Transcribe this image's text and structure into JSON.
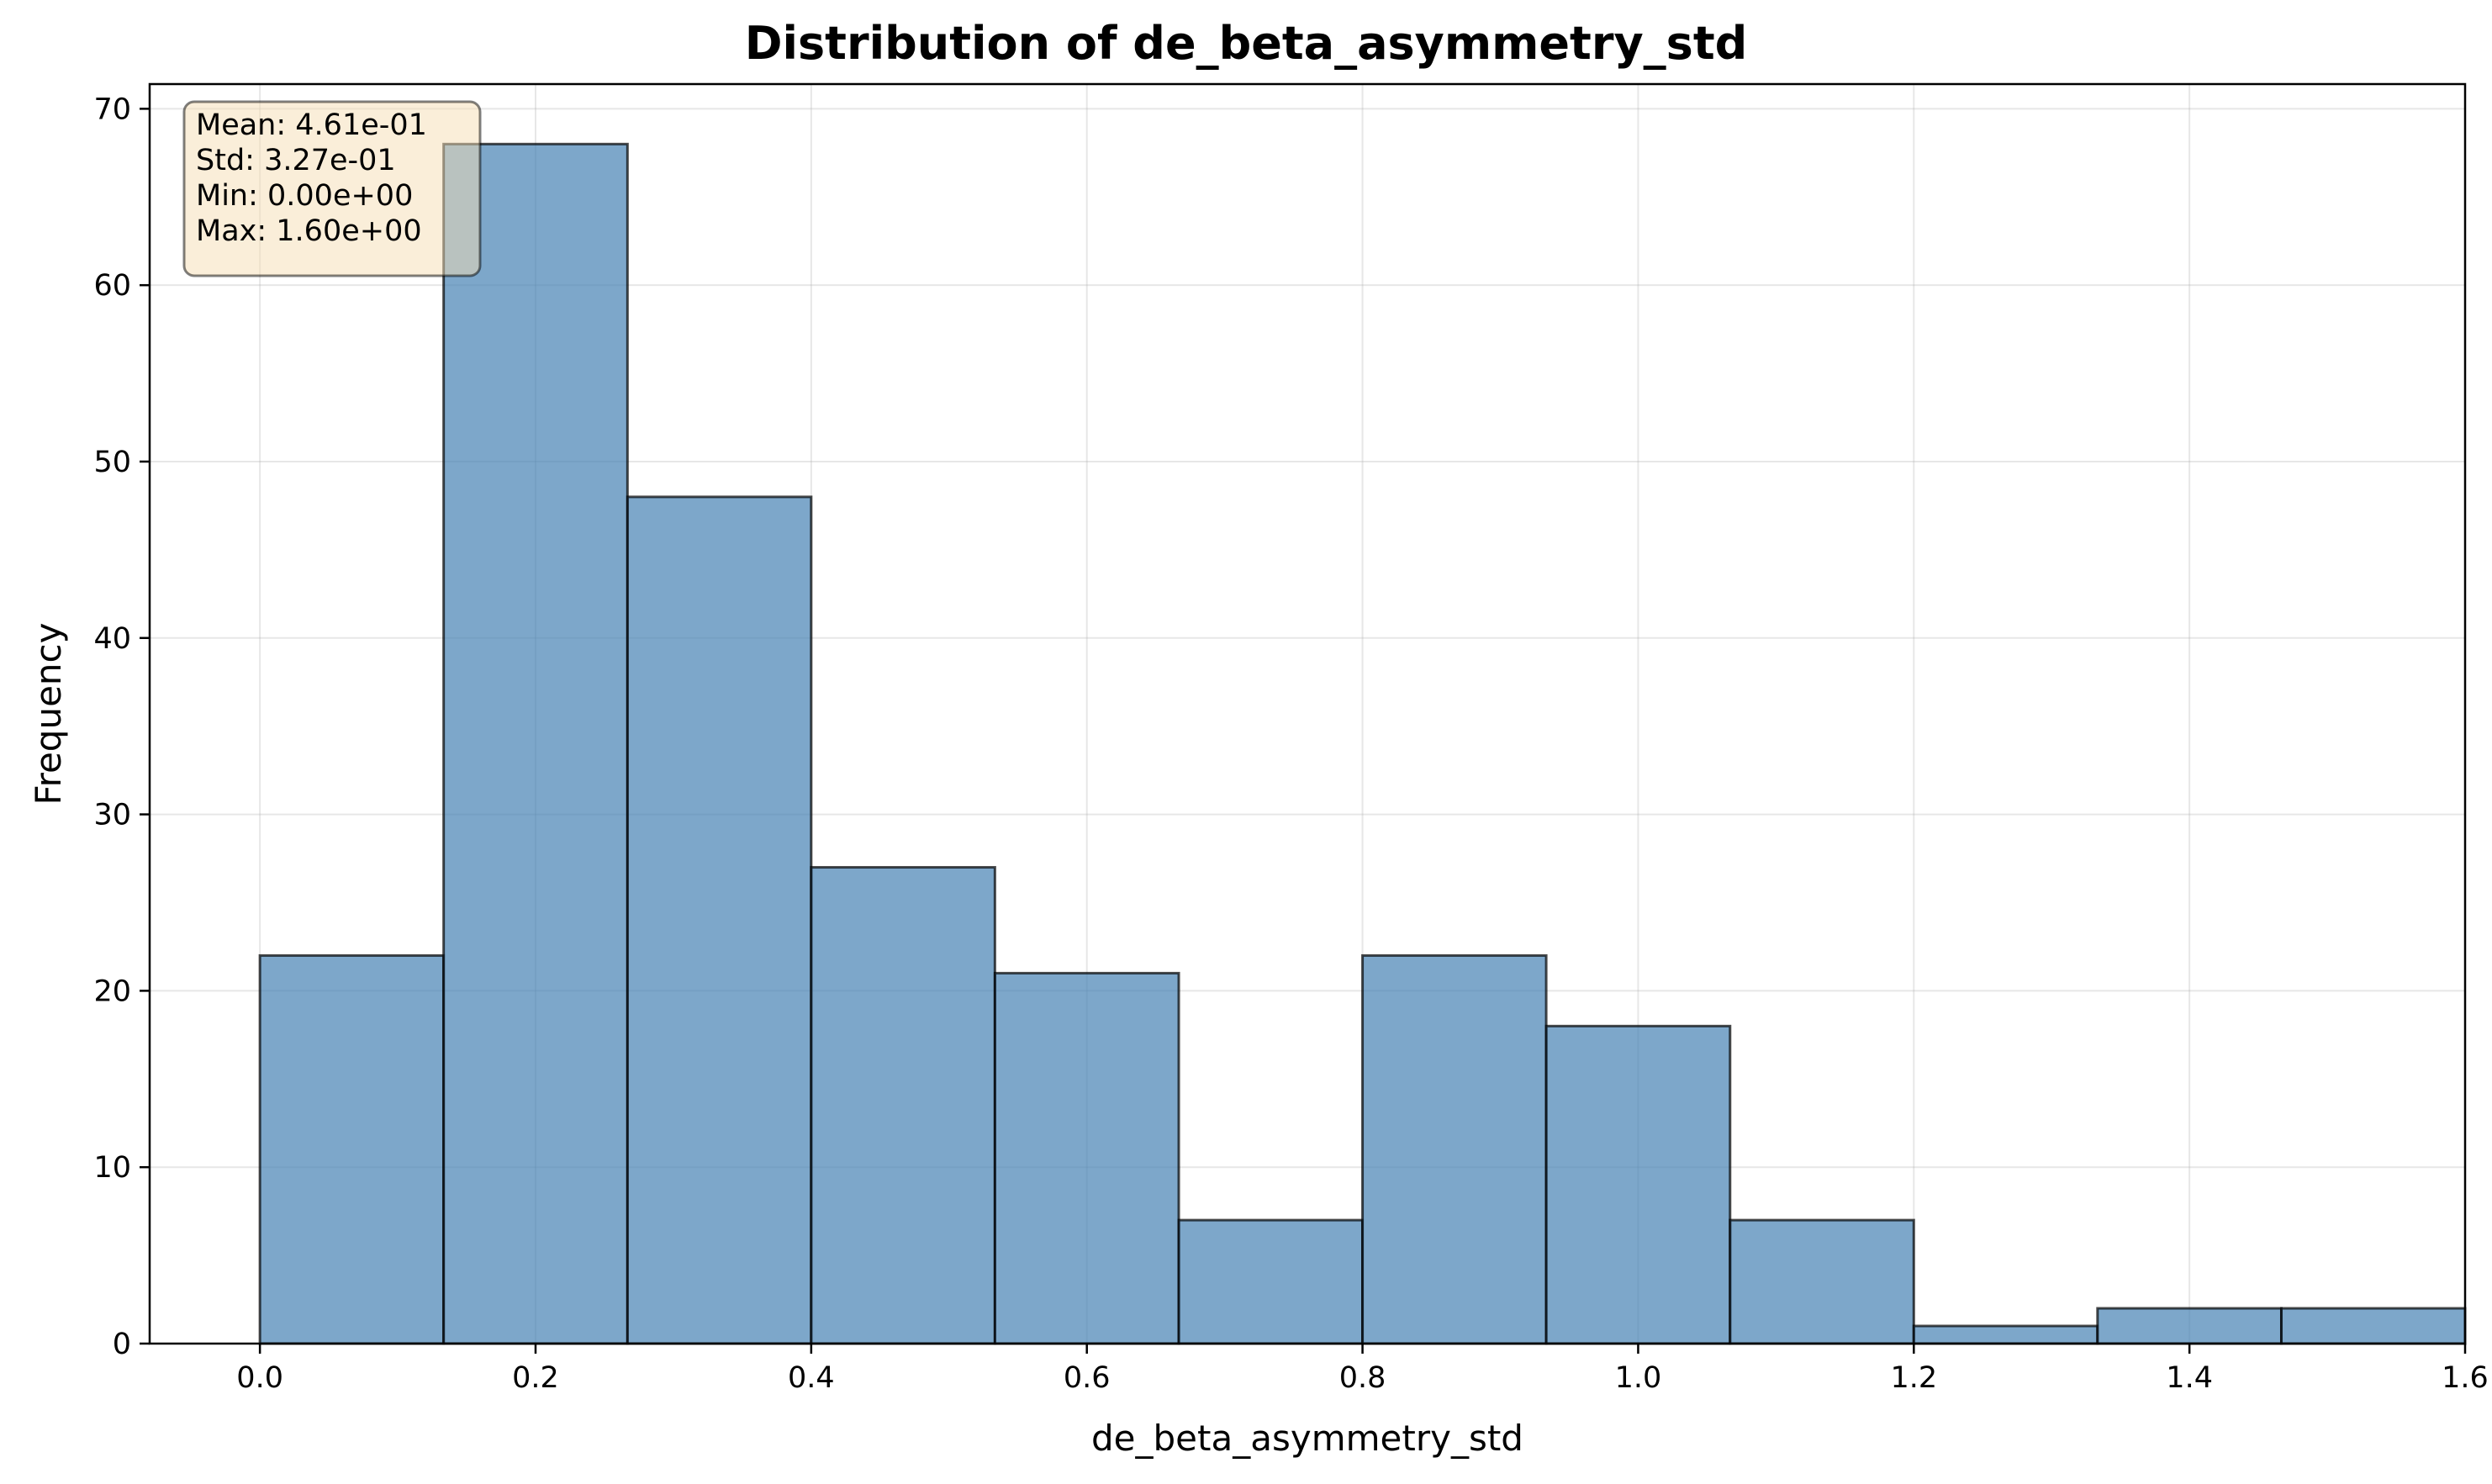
{
  "chart_data": {
    "type": "bar",
    "title": "Distribution of de_beta_asymmetry_std",
    "xlabel": "de_beta_asymmetry_std",
    "ylabel": "Frequency",
    "bin_edges": [
      0.0,
      0.1333,
      0.2667,
      0.4,
      0.5333,
      0.6667,
      0.8,
      0.9333,
      1.0667,
      1.2,
      1.3333,
      1.4667,
      1.6
    ],
    "values": [
      22,
      68,
      48,
      27,
      21,
      7,
      22,
      18,
      7,
      1,
      2,
      2
    ],
    "xlim": [
      -0.08,
      1.6
    ],
    "ylim": [
      0,
      71.4
    ],
    "xticks": [
      0.0,
      0.2,
      0.4,
      0.6,
      0.8,
      1.0,
      1.2,
      1.4,
      1.6
    ],
    "xtick_labels": [
      "0.0",
      "0.2",
      "0.4",
      "0.6",
      "0.8",
      "1.0",
      "1.2",
      "1.4",
      "1.6"
    ],
    "yticks": [
      0,
      10,
      20,
      30,
      40,
      50,
      60,
      70
    ],
    "ytick_labels": [
      "0",
      "10",
      "20",
      "30",
      "40",
      "50",
      "60",
      "70"
    ],
    "grid": true,
    "colors": {
      "bar": "#4682b4",
      "edge": "#000000",
      "stats_box": "#f5deb3"
    },
    "stats_box": {
      "position": "top-left",
      "lines": [
        "Mean: 4.61e-01",
        "Std: 3.27e-01",
        "Min: 0.00e+00",
        "Max: 1.60e+00"
      ]
    }
  }
}
